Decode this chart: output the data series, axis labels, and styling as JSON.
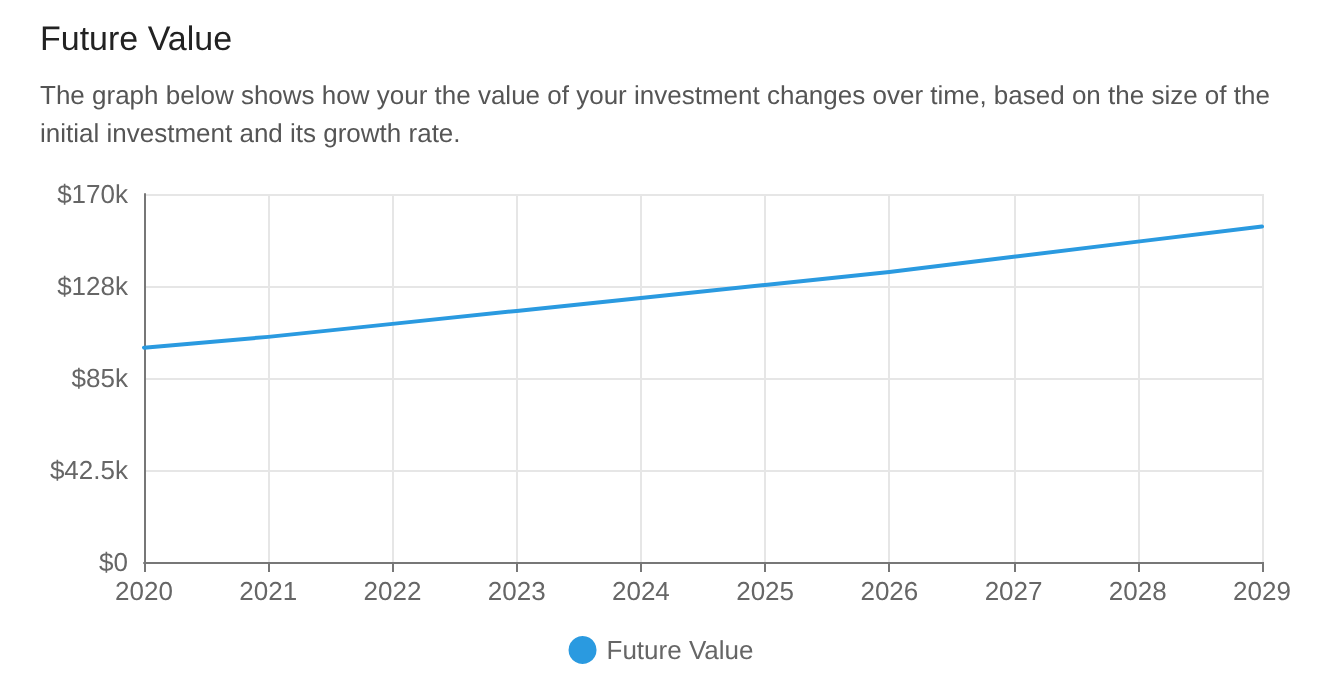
{
  "chart_data": {
    "type": "line",
    "title": "Future Value",
    "subtitle": "The graph below shows how your the value of your investment changes over time, based on the size of the initial investment and its growth rate.",
    "x": [
      2020,
      2021,
      2022,
      2023,
      2024,
      2025,
      2026,
      2027,
      2028,
      2029
    ],
    "series": [
      {
        "name": "Future Value",
        "color": "#2a9ae0",
        "values": [
          99000,
          104000,
          110000,
          116000,
          122000,
          128000,
          134000,
          141000,
          148000,
          155000
        ]
      }
    ],
    "xlim": [
      2020,
      2029
    ],
    "xticks": [
      2020,
      2021,
      2022,
      2023,
      2024,
      2025,
      2026,
      2027,
      2028,
      2029
    ],
    "ylim": [
      0,
      170000
    ],
    "yticks": [
      {
        "value": 0,
        "label": "$0"
      },
      {
        "value": 42500,
        "label": "$42.5k"
      },
      {
        "value": 85000,
        "label": "$85k"
      },
      {
        "value": 127500,
        "label": "$128k"
      },
      {
        "value": 170000,
        "label": "$170k"
      }
    ],
    "grid": true,
    "legend": "bottom",
    "marker": "none",
    "line_style": "solid"
  }
}
